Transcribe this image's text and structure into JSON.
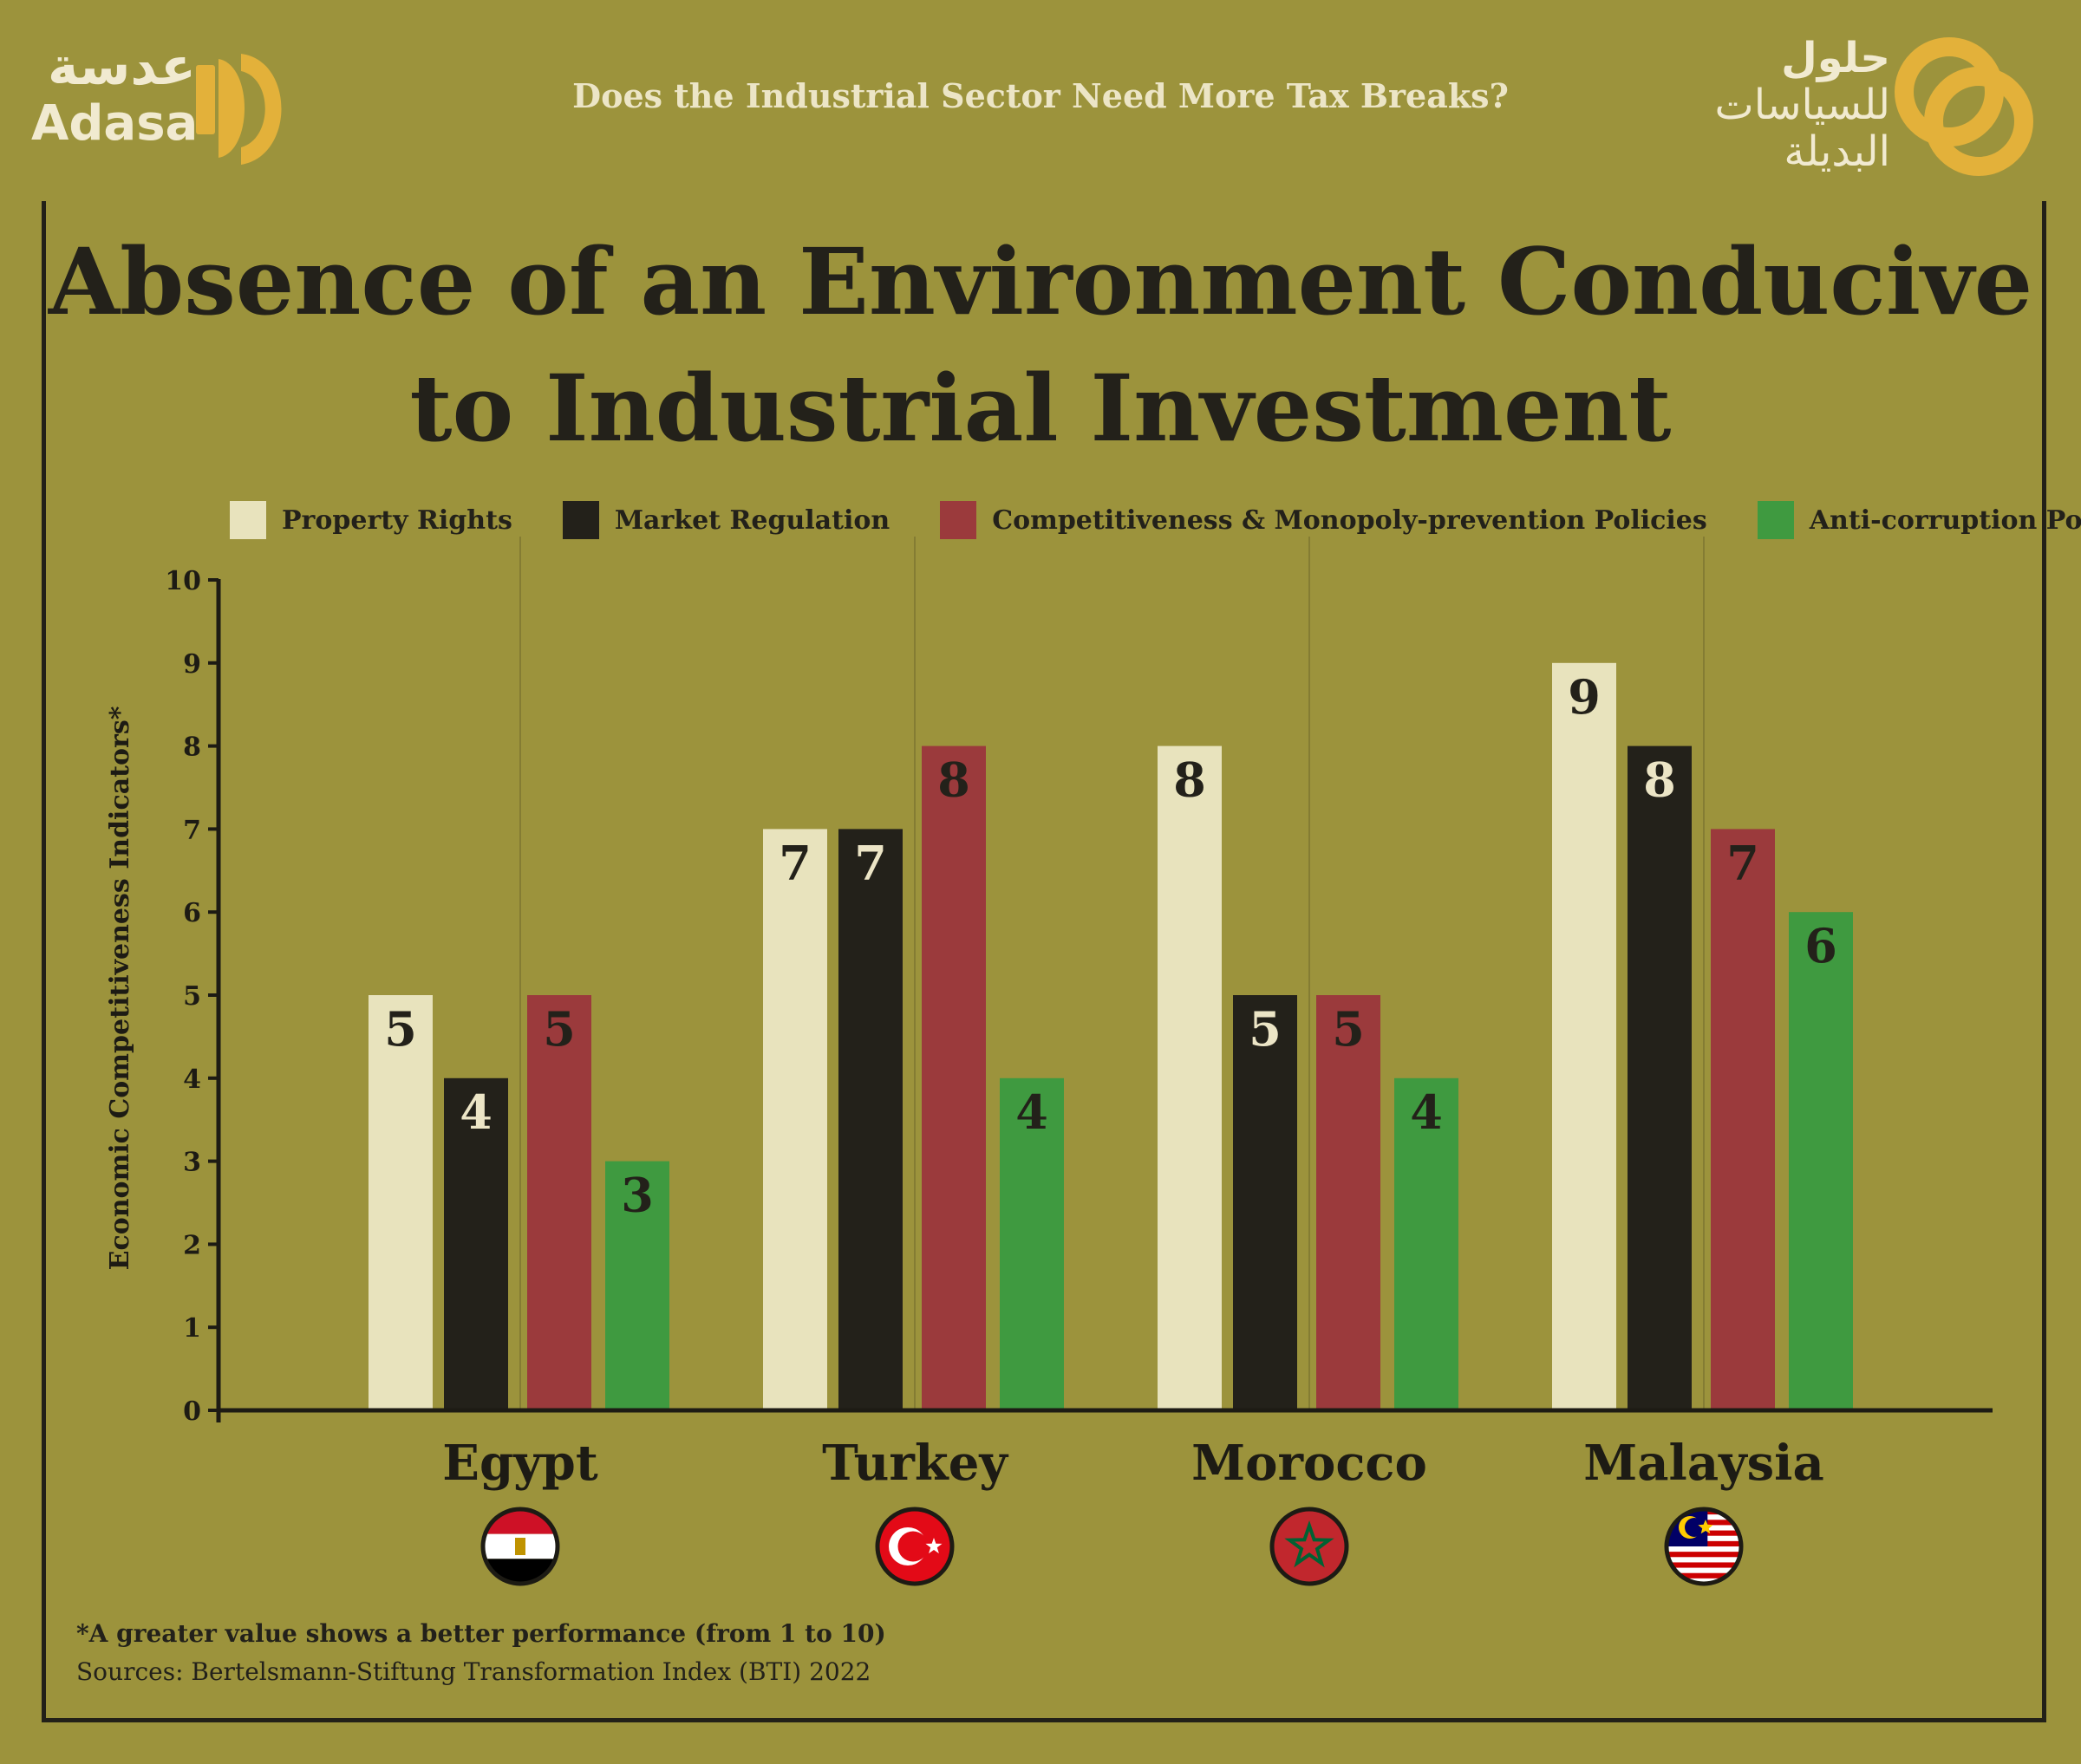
{
  "header": {
    "question": "Does the Industrial Sector Need More Tax Breaks?",
    "adasa_logo_ar": "عدسة",
    "adasa_logo_en": "Adasa",
    "hulul_line1": "حلول",
    "hulul_line2": "للسياسات",
    "hulul_line3": "البديلة"
  },
  "colors": {
    "background": "#9c933c",
    "property_rights": "#e8e3bd",
    "market_regulation": "#23211a",
    "competitiveness": "#9b3a3c",
    "anti_corruption": "#3f9a40",
    "logo": "#e3b13a"
  },
  "chart_data": {
    "type": "bar",
    "title": "Absence of an Environment Conducive to Industrial Investment",
    "title_line1": "Absence of an Environment Conducive",
    "title_line2": "to Industrial Investment",
    "ylabel": "Economic Competitiveness Indicators*",
    "xlabel": "",
    "ylim": [
      0,
      10
    ],
    "yticks": [
      "0",
      "1",
      "2",
      "3",
      "4",
      "5",
      "6",
      "7",
      "8",
      "9",
      "10"
    ],
    "categories": [
      "Egypt",
      "Turkey",
      "Morocco",
      "Malaysia"
    ],
    "category_flags": [
      "egypt-flag-icon",
      "turkey-flag-icon",
      "morocco-flag-icon",
      "malaysia-flag-icon"
    ],
    "legend_position": "top",
    "grid": "vertical separators between countries",
    "series": [
      {
        "name": "Property Rights",
        "values": [
          5,
          7,
          8,
          9
        ],
        "color": "#e8e3bd",
        "label_color": "#23211a"
      },
      {
        "name": "Market Regulation",
        "values": [
          4,
          7,
          5,
          8
        ],
        "color": "#23211a",
        "label_color": "#ece5c6"
      },
      {
        "name": "Competitiveness & Monopoly-prevention Policies",
        "values": [
          5,
          8,
          5,
          7
        ],
        "color": "#9b3a3c",
        "label_color": "#23211a"
      },
      {
        "name": "Anti-corruption Policies",
        "values": [
          3,
          4,
          4,
          6
        ],
        "color": "#3f9a40",
        "label_color": "#23211a"
      }
    ]
  },
  "footnote": "*A greater value shows a better performance (from 1 to 10)",
  "sources": "Sources: Bertelsmann-Stiftung Transformation Index (BTI) 2022"
}
